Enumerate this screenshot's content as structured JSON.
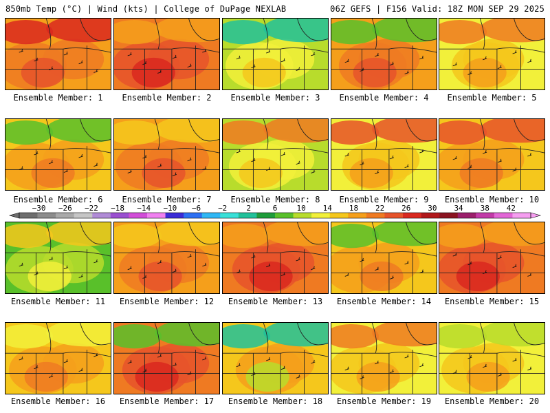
{
  "header": {
    "left": "850mb Temp (°C) | Wind (kts) | College of DuPage NEXLAB",
    "right": "06Z GEFS | F156 Valid: 18Z MON SEP 29 2025"
  },
  "colorbar": {
    "ticks": [
      "−30",
      "−26",
      "−22",
      "−18",
      "−14",
      "−10",
      "−6",
      "−2",
      "2",
      "6",
      "10",
      "14",
      "18",
      "22",
      "26",
      "30",
      "34",
      "38",
      "42"
    ],
    "colors": [
      "#6e6e6e",
      "#8c8c8c",
      "#a9a9a9",
      "#c6c6c6",
      "#b08bd6",
      "#9a4fd0",
      "#d24dd8",
      "#f080f0",
      "#3b2bd6",
      "#2c6ff2",
      "#2fb7f5",
      "#38e0d8",
      "#21c19a",
      "#1e9c3a",
      "#59c02a",
      "#b8dc2c",
      "#f2f03a",
      "#f5c71c",
      "#f59f1b",
      "#ef7a22",
      "#e6532a",
      "#d9281f",
      "#b0171a",
      "#8a1320",
      "#9b1f6b",
      "#c23aa8",
      "#e266d6",
      "#f59ef0"
    ]
  },
  "panels": [
    {
      "label": "Ensemble Member: 1",
      "palette": [
        "#f59f1b",
        "#ef7a22",
        "#e6532a",
        "#d9281f"
      ]
    },
    {
      "label": "Ensemble Member: 2",
      "palette": [
        "#ef7a22",
        "#e6532a",
        "#d9281f",
        "#f59f1b"
      ]
    },
    {
      "label": "Ensemble Member: 3",
      "palette": [
        "#b8dc2c",
        "#f2f03a",
        "#f5c71c",
        "#21c19a"
      ]
    },
    {
      "label": "Ensemble Member: 4",
      "palette": [
        "#f59f1b",
        "#ef7a22",
        "#e6532a",
        "#59c02a"
      ]
    },
    {
      "label": "Ensemble Member: 5",
      "palette": [
        "#f2f03a",
        "#f5c71c",
        "#f59f1b",
        "#ef7a22"
      ]
    },
    {
      "label": "Ensemble Member: 6",
      "palette": [
        "#f5c71c",
        "#f59f1b",
        "#ef7a22",
        "#59c02a"
      ]
    },
    {
      "label": "Ensemble Member: 7",
      "palette": [
        "#f59f1b",
        "#ef7a22",
        "#e6532a",
        "#f5c71c"
      ]
    },
    {
      "label": "Ensemble Member: 8",
      "palette": [
        "#b8dc2c",
        "#f2f03a",
        "#f5c71c",
        "#ef7a22"
      ]
    },
    {
      "label": "Ensemble Member: 9",
      "palette": [
        "#f2f03a",
        "#f5c71c",
        "#f59f1b",
        "#e6532a"
      ]
    },
    {
      "label": "Ensemble Member: 10",
      "palette": [
        "#f5c71c",
        "#f59f1b",
        "#ef7a22",
        "#e6532a"
      ]
    },
    {
      "label": "Ensemble Member: 11",
      "palette": [
        "#59c02a",
        "#b8dc2c",
        "#f2f03a",
        "#f5c71c"
      ]
    },
    {
      "label": "Ensemble Member: 12",
      "palette": [
        "#f59f1b",
        "#ef7a22",
        "#e6532a",
        "#f5c71c"
      ]
    },
    {
      "label": "Ensemble Member: 13",
      "palette": [
        "#ef7a22",
        "#e6532a",
        "#d9281f",
        "#f59f1b"
      ]
    },
    {
      "label": "Ensemble Member: 14",
      "palette": [
        "#f5c71c",
        "#f59f1b",
        "#ef7a22",
        "#59c02a"
      ]
    },
    {
      "label": "Ensemble Member: 15",
      "palette": [
        "#ef7a22",
        "#e6532a",
        "#d9281f",
        "#f59f1b"
      ]
    },
    {
      "label": "Ensemble Member: 16",
      "palette": [
        "#f5c71c",
        "#f59f1b",
        "#ef7a22",
        "#f2f03a"
      ]
    },
    {
      "label": "Ensemble Member: 17",
      "palette": [
        "#ef7a22",
        "#e6532a",
        "#d9281f",
        "#59c02a"
      ]
    },
    {
      "label": "Ensemble Member: 18",
      "palette": [
        "#f5c71c",
        "#f59f1b",
        "#b8dc2c",
        "#21c19a"
      ]
    },
    {
      "label": "Ensemble Member: 19",
      "palette": [
        "#f2f03a",
        "#f5c71c",
        "#f59f1b",
        "#ef7a22"
      ]
    },
    {
      "label": "Ensemble Member: 20",
      "palette": [
        "#f2f03a",
        "#f5c71c",
        "#f59f1b",
        "#b8dc2c"
      ]
    }
  ]
}
